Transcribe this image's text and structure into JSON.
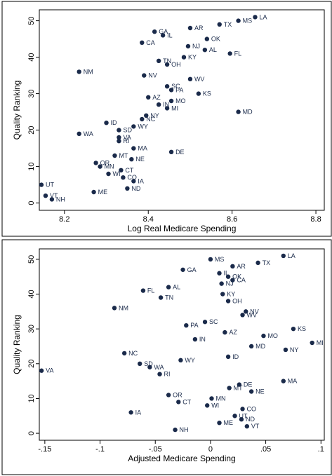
{
  "chart_data": [
    {
      "type": "scatter",
      "xlabel": "Log Real Medicare Spending",
      "ylabel": "Quality Ranking",
      "xlim": [
        8.14,
        8.82
      ],
      "ylim": [
        -2,
        53
      ],
      "xticks": [
        8.2,
        8.4,
        8.6,
        8.8
      ],
      "xtick_labels": [
        "8.2",
        "8.4",
        "8.6",
        "8.8"
      ],
      "yticks": [
        0,
        10,
        20,
        30,
        40,
        50
      ],
      "ytick_labels": [
        "0",
        "10",
        "20",
        "30",
        "40",
        "50"
      ],
      "grid": false,
      "point_color": "#1a2a4a",
      "points": [
        {
          "label": "LA",
          "x": 8.655,
          "y": 51
        },
        {
          "label": "MS",
          "x": 8.615,
          "y": 50
        },
        {
          "label": "TX",
          "x": 8.57,
          "y": 49
        },
        {
          "label": "AR",
          "x": 8.5,
          "y": 48
        },
        {
          "label": "GA",
          "x": 8.415,
          "y": 47
        },
        {
          "label": "IL",
          "x": 8.435,
          "y": 46
        },
        {
          "label": "OK",
          "x": 8.54,
          "y": 45
        },
        {
          "label": "CA",
          "x": 8.385,
          "y": 44
        },
        {
          "label": "NJ",
          "x": 8.495,
          "y": 43
        },
        {
          "label": "AL",
          "x": 8.535,
          "y": 42
        },
        {
          "label": "FL",
          "x": 8.595,
          "y": 41
        },
        {
          "label": "KY",
          "x": 8.485,
          "y": 40
        },
        {
          "label": "TN",
          "x": 8.425,
          "y": 39
        },
        {
          "label": "OH",
          "x": 8.445,
          "y": 38
        },
        {
          "label": "NM",
          "x": 8.235,
          "y": 36
        },
        {
          "label": "NV",
          "x": 8.39,
          "y": 35
        },
        {
          "label": "WV",
          "x": 8.5,
          "y": 34
        },
        {
          "label": "SC",
          "x": 8.445,
          "y": 32
        },
        {
          "label": "PA",
          "x": 8.455,
          "y": 31
        },
        {
          "label": "KS",
          "x": 8.52,
          "y": 30
        },
        {
          "label": "AZ",
          "x": 8.4,
          "y": 29
        },
        {
          "label": "MO",
          "x": 8.455,
          "y": 28
        },
        {
          "label": "IN",
          "x": 8.425,
          "y": 27
        },
        {
          "label": "MI",
          "x": 8.445,
          "y": 26
        },
        {
          "label": "MD",
          "x": 8.615,
          "y": 25
        },
        {
          "label": "NY",
          "x": 8.395,
          "y": 24
        },
        {
          "label": "NC",
          "x": 8.385,
          "y": 23
        },
        {
          "label": "ID",
          "x": 8.3,
          "y": 22
        },
        {
          "label": "WY",
          "x": 8.365,
          "y": 21
        },
        {
          "label": "SD",
          "x": 8.33,
          "y": 20
        },
        {
          "label": "WA",
          "x": 8.235,
          "y": 19
        },
        {
          "label": "VA",
          "x": 8.33,
          "y": 18
        },
        {
          "label": "RI",
          "x": 8.33,
          "y": 17
        },
        {
          "label": "MA",
          "x": 8.365,
          "y": 15
        },
        {
          "label": "DE",
          "x": 8.455,
          "y": 14
        },
        {
          "label": "MT",
          "x": 8.32,
          "y": 13
        },
        {
          "label": "NE",
          "x": 8.36,
          "y": 12
        },
        {
          "label": "OR",
          "x": 8.275,
          "y": 11
        },
        {
          "label": "MN",
          "x": 8.285,
          "y": 10
        },
        {
          "label": "CT",
          "x": 8.335,
          "y": 9
        },
        {
          "label": "WI",
          "x": 8.305,
          "y": 8
        },
        {
          "label": "CO",
          "x": 8.34,
          "y": 7
        },
        {
          "label": "IA",
          "x": 8.365,
          "y": 6
        },
        {
          "label": "UT",
          "x": 8.145,
          "y": 5
        },
        {
          "label": "ND",
          "x": 8.35,
          "y": 4
        },
        {
          "label": "ME",
          "x": 8.27,
          "y": 3
        },
        {
          "label": "VT",
          "x": 8.155,
          "y": 2
        },
        {
          "label": "NH",
          "x": 8.17,
          "y": 1
        }
      ]
    },
    {
      "type": "scatter",
      "xlabel": "Adjusted Medicare Spending",
      "ylabel": "Quality Ranking",
      "xlim": [
        -0.155,
        0.103
      ],
      "ylim": [
        -2,
        53
      ],
      "xticks": [
        -0.15,
        -0.1,
        -0.05,
        0,
        0.05,
        0.1
      ],
      "xtick_labels": [
        "-.15",
        "-.1",
        "-.05",
        "0",
        ".05",
        ".1"
      ],
      "yticks": [
        0,
        10,
        20,
        30,
        40,
        50
      ],
      "ytick_labels": [
        "0",
        "10",
        "20",
        "30",
        "40",
        "50"
      ],
      "grid": false,
      "point_color": "#1a2a4a",
      "points": [
        {
          "label": "LA",
          "x": 0.066,
          "y": 51
        },
        {
          "label": "MS",
          "x": 0.0,
          "y": 50
        },
        {
          "label": "TX",
          "x": 0.043,
          "y": 49
        },
        {
          "label": "AR",
          "x": 0.02,
          "y": 48
        },
        {
          "label": "GA",
          "x": -0.025,
          "y": 47
        },
        {
          "label": "IL",
          "x": 0.008,
          "y": 46
        },
        {
          "label": "OK",
          "x": 0.016,
          "y": 45
        },
        {
          "label": "CA",
          "x": 0.02,
          "y": 44
        },
        {
          "label": "NJ",
          "x": 0.01,
          "y": 43
        },
        {
          "label": "AL",
          "x": -0.038,
          "y": 42
        },
        {
          "label": "FL",
          "x": -0.061,
          "y": 41
        },
        {
          "label": "KY",
          "x": 0.011,
          "y": 40
        },
        {
          "label": "TN",
          "x": -0.045,
          "y": 39
        },
        {
          "label": "OH",
          "x": 0.016,
          "y": 38
        },
        {
          "label": "NM",
          "x": -0.087,
          "y": 36
        },
        {
          "label": "NV",
          "x": 0.032,
          "y": 35
        },
        {
          "label": "WV",
          "x": 0.029,
          "y": 34
        },
        {
          "label": "SC",
          "x": -0.005,
          "y": 32
        },
        {
          "label": "PA",
          "x": -0.022,
          "y": 31
        },
        {
          "label": "KS",
          "x": 0.075,
          "y": 30
        },
        {
          "label": "AZ",
          "x": 0.013,
          "y": 29
        },
        {
          "label": "MO",
          "x": 0.048,
          "y": 28
        },
        {
          "label": "IN",
          "x": -0.014,
          "y": 27
        },
        {
          "label": "MI",
          "x": 0.092,
          "y": 26
        },
        {
          "label": "MD",
          "x": 0.037,
          "y": 25
        },
        {
          "label": "NY",
          "x": 0.068,
          "y": 24
        },
        {
          "label": "NC",
          "x": -0.078,
          "y": 23
        },
        {
          "label": "ID",
          "x": 0.016,
          "y": 22
        },
        {
          "label": "WY",
          "x": -0.027,
          "y": 21
        },
        {
          "label": "SD",
          "x": -0.064,
          "y": 20
        },
        {
          "label": "WA",
          "x": -0.055,
          "y": 19
        },
        {
          "label": "VA",
          "x": -0.153,
          "y": 18
        },
        {
          "label": "RI",
          "x": -0.046,
          "y": 17
        },
        {
          "label": "MA",
          "x": 0.066,
          "y": 15
        },
        {
          "label": "DE",
          "x": 0.026,
          "y": 14
        },
        {
          "label": "MT",
          "x": 0.017,
          "y": 13
        },
        {
          "label": "NE",
          "x": 0.037,
          "y": 12
        },
        {
          "label": "OR",
          "x": -0.038,
          "y": 11
        },
        {
          "label": "MN",
          "x": 0.001,
          "y": 10
        },
        {
          "label": "CT",
          "x": -0.029,
          "y": 9
        },
        {
          "label": "WI",
          "x": -0.003,
          "y": 8
        },
        {
          "label": "CO",
          "x": 0.029,
          "y": 7
        },
        {
          "label": "IA",
          "x": -0.072,
          "y": 6
        },
        {
          "label": "UT",
          "x": 0.022,
          "y": 5
        },
        {
          "label": "ND",
          "x": 0.028,
          "y": 4
        },
        {
          "label": "ME",
          "x": 0.008,
          "y": 3
        },
        {
          "label": "VT",
          "x": 0.033,
          "y": 2
        },
        {
          "label": "NH",
          "x": -0.032,
          "y": 1
        }
      ]
    }
  ]
}
